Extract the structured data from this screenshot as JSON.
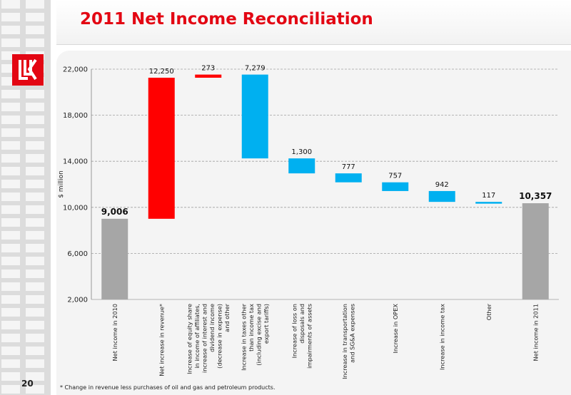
{
  "slide": {
    "title": "2011 Net Income Reconciliation",
    "page_number": "20",
    "footnote": "* Change in revenue less purchases of oil and gas and petroleum products."
  },
  "colors": {
    "total": "#a6a6a6",
    "increase": "#ff0000",
    "decrease": "#00b0f0",
    "brand": "#e30613"
  },
  "chart_data": {
    "type": "bar",
    "subtype": "waterfall",
    "ylabel": "$ million",
    "ylim": [
      2000,
      22000
    ],
    "yticks": [
      "2,000",
      "6,000",
      "10,000",
      "14,000",
      "18,000",
      "22,000"
    ],
    "ytick_values": [
      2000,
      6000,
      10000,
      14000,
      18000,
      22000
    ],
    "grid": true,
    "categories": [
      [
        "Net income in 2010"
      ],
      [
        "Net increase in revenue*"
      ],
      [
        "Increase of equity share",
        "in income of affiliates,",
        "increase of interest and",
        "dividend income",
        "(decrease in expense)",
        "and other"
      ],
      [
        "Increase in taxes other",
        "than income tax",
        "(including excise and",
        "export tariffs)"
      ],
      [
        "Increase of loss on",
        "disposals and",
        "impairments of assets"
      ],
      [
        "Increase in transportation",
        "and SG&A expenses"
      ],
      [
        "Increase in OPEX"
      ],
      [
        "Increase in income tax"
      ],
      [
        "Other"
      ],
      [
        "Net income in 2011"
      ]
    ],
    "bars": [
      {
        "kind": "total",
        "from": 2000,
        "to": 9006,
        "label": "9,006"
      },
      {
        "kind": "increase",
        "from": 9006,
        "to": 21256,
        "label": "12,250"
      },
      {
        "kind": "increase",
        "from": 21256,
        "to": 21529,
        "label": "273"
      },
      {
        "kind": "decrease",
        "from": 21529,
        "to": 14250,
        "label": "7,279"
      },
      {
        "kind": "decrease",
        "from": 14250,
        "to": 12950,
        "label": "1,300"
      },
      {
        "kind": "decrease",
        "from": 12950,
        "to": 12173,
        "label": "777"
      },
      {
        "kind": "decrease",
        "from": 12173,
        "to": 11416,
        "label": "757"
      },
      {
        "kind": "decrease",
        "from": 11416,
        "to": 10474,
        "label": "942"
      },
      {
        "kind": "decrease",
        "from": 10474,
        "to": 10357,
        "label": "117"
      },
      {
        "kind": "total",
        "from": 2000,
        "to": 10357,
        "label": "10,357"
      }
    ]
  }
}
